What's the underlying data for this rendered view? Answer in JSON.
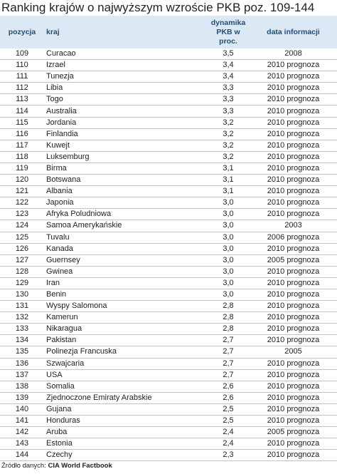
{
  "title": "Ranking krajów o najwyższym wzroście PKB poz. 109-144",
  "table": {
    "header": [
      "pozycja",
      "kraj",
      "dynamika PKB w proc.",
      "data informacji"
    ],
    "rows": [
      [
        "109",
        "Curacao",
        "3,5",
        "2008"
      ],
      [
        "110",
        "Izrael",
        "3,4",
        "2010 prognoza"
      ],
      [
        "111",
        "Tunezja",
        "3,4",
        "2010 prognoza"
      ],
      [
        "112",
        "Libia",
        "3,3",
        "2010 prognoza"
      ],
      [
        "113",
        "Togo",
        "3,3",
        "2010 prognoza"
      ],
      [
        "114",
        "Australia",
        "3,3",
        "2010 prognoza"
      ],
      [
        "115",
        "Jordania",
        "3,2",
        "2010 prognoza"
      ],
      [
        "116",
        "Finlandia",
        "3,2",
        "2010 prognoza"
      ],
      [
        "117",
        "Kuwejt",
        "3,2",
        "2010 prognoza"
      ],
      [
        "118",
        "Luksemburg",
        "3,2",
        "2010 prognoza"
      ],
      [
        "119",
        "Birma",
        "3,1",
        "2010 prognoza"
      ],
      [
        "120",
        "Botswana",
        "3,1",
        "2010 prognoza"
      ],
      [
        "121",
        "Albania",
        "3,1",
        "2010 prognoza"
      ],
      [
        "122",
        "Japonia",
        "3,0",
        "2010 prognoza"
      ],
      [
        "123",
        "Afryka Poludniowa",
        "3,0",
        "2010 prognoza"
      ],
      [
        "124",
        "Samoa Amerykańskie",
        "3,0",
        "2003"
      ],
      [
        "125",
        "Tuvalu",
        "3,0",
        "2006 prognoza"
      ],
      [
        "126",
        "Kanada",
        "3,0",
        "2010 prognoza"
      ],
      [
        "127",
        "Guernsey",
        "3,0",
        "2005 prognoza"
      ],
      [
        "128",
        "Gwinea",
        "3,0",
        "2010 prognoza"
      ],
      [
        "129",
        "Iran",
        "3,0",
        "2010 prognoza"
      ],
      [
        "130",
        "Benin",
        "3,0",
        "2010 prognoza"
      ],
      [
        "131",
        "Wyspy Salomona",
        "2,8",
        "2010 prognoza"
      ],
      [
        "132",
        "Kamerun",
        "2,8",
        "2010 prognoza"
      ],
      [
        "133",
        "Nikaragua",
        "2,8",
        "2010 prognoza"
      ],
      [
        "134",
        "Pakistan",
        "2,7",
        "2010 prognoza"
      ],
      [
        "135",
        "Polinezja Francuska",
        "2,7",
        "2005"
      ],
      [
        "136",
        "Szwajcaria",
        "2,7",
        "2010 prognoza"
      ],
      [
        "137",
        "USA",
        "2,7",
        "2010 prognoza"
      ],
      [
        "138",
        "Somalia",
        "2,6",
        "2010 prognoza"
      ],
      [
        "139",
        "Zjednoczone Emiraty Arabskie",
        "2,6",
        "2010 prognoza"
      ],
      [
        "140",
        "Gujana",
        "2,5",
        "2010 prognoza"
      ],
      [
        "141",
        "Honduras",
        "2,5",
        "2010 prognoza"
      ],
      [
        "142",
        "Aruba",
        "2,4",
        "2005 prognoza"
      ],
      [
        "143",
        "Estonia",
        "2,4",
        "2010 prognoza"
      ],
      [
        "144",
        "Czechy",
        "2,3",
        "2010 prognoza"
      ]
    ]
  },
  "source": {
    "label": "Źródło danych:",
    "name": "CIA World Factbook"
  }
}
